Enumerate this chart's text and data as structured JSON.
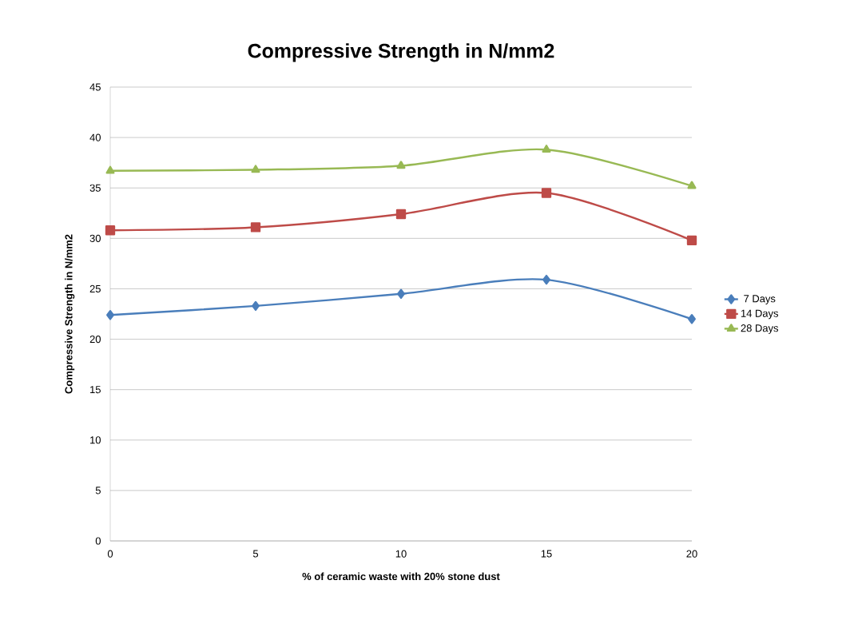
{
  "chart_data": {
    "type": "line",
    "title": "Compressive Strength in N/mm2",
    "xlabel": "% of ceramic waste  with 20% stone dust",
    "ylabel": "Compressive Strength in N/mm2",
    "x": [
      0,
      5,
      10,
      15,
      20
    ],
    "series": [
      {
        "name": "7 Days",
        "color": "#4a7ebb",
        "marker": "diamond",
        "values": [
          22.4,
          23.3,
          24.5,
          25.9,
          22.0
        ]
      },
      {
        "name": "14 Days",
        "color": "#be4b48",
        "marker": "square",
        "values": [
          30.8,
          31.1,
          32.4,
          34.5,
          29.8
        ]
      },
      {
        "name": "28 Days",
        "color": "#98b954",
        "marker": "triangle",
        "values": [
          36.7,
          36.8,
          37.2,
          38.8,
          35.2
        ]
      }
    ],
    "xlim": [
      0,
      20
    ],
    "xticks": [
      0,
      5,
      10,
      15,
      20
    ],
    "ylim": [
      0,
      45
    ],
    "yticks": [
      0,
      5,
      10,
      15,
      20,
      25,
      30,
      35,
      40,
      45
    ],
    "grid": "y",
    "legend": "right",
    "line_style": "solid"
  }
}
